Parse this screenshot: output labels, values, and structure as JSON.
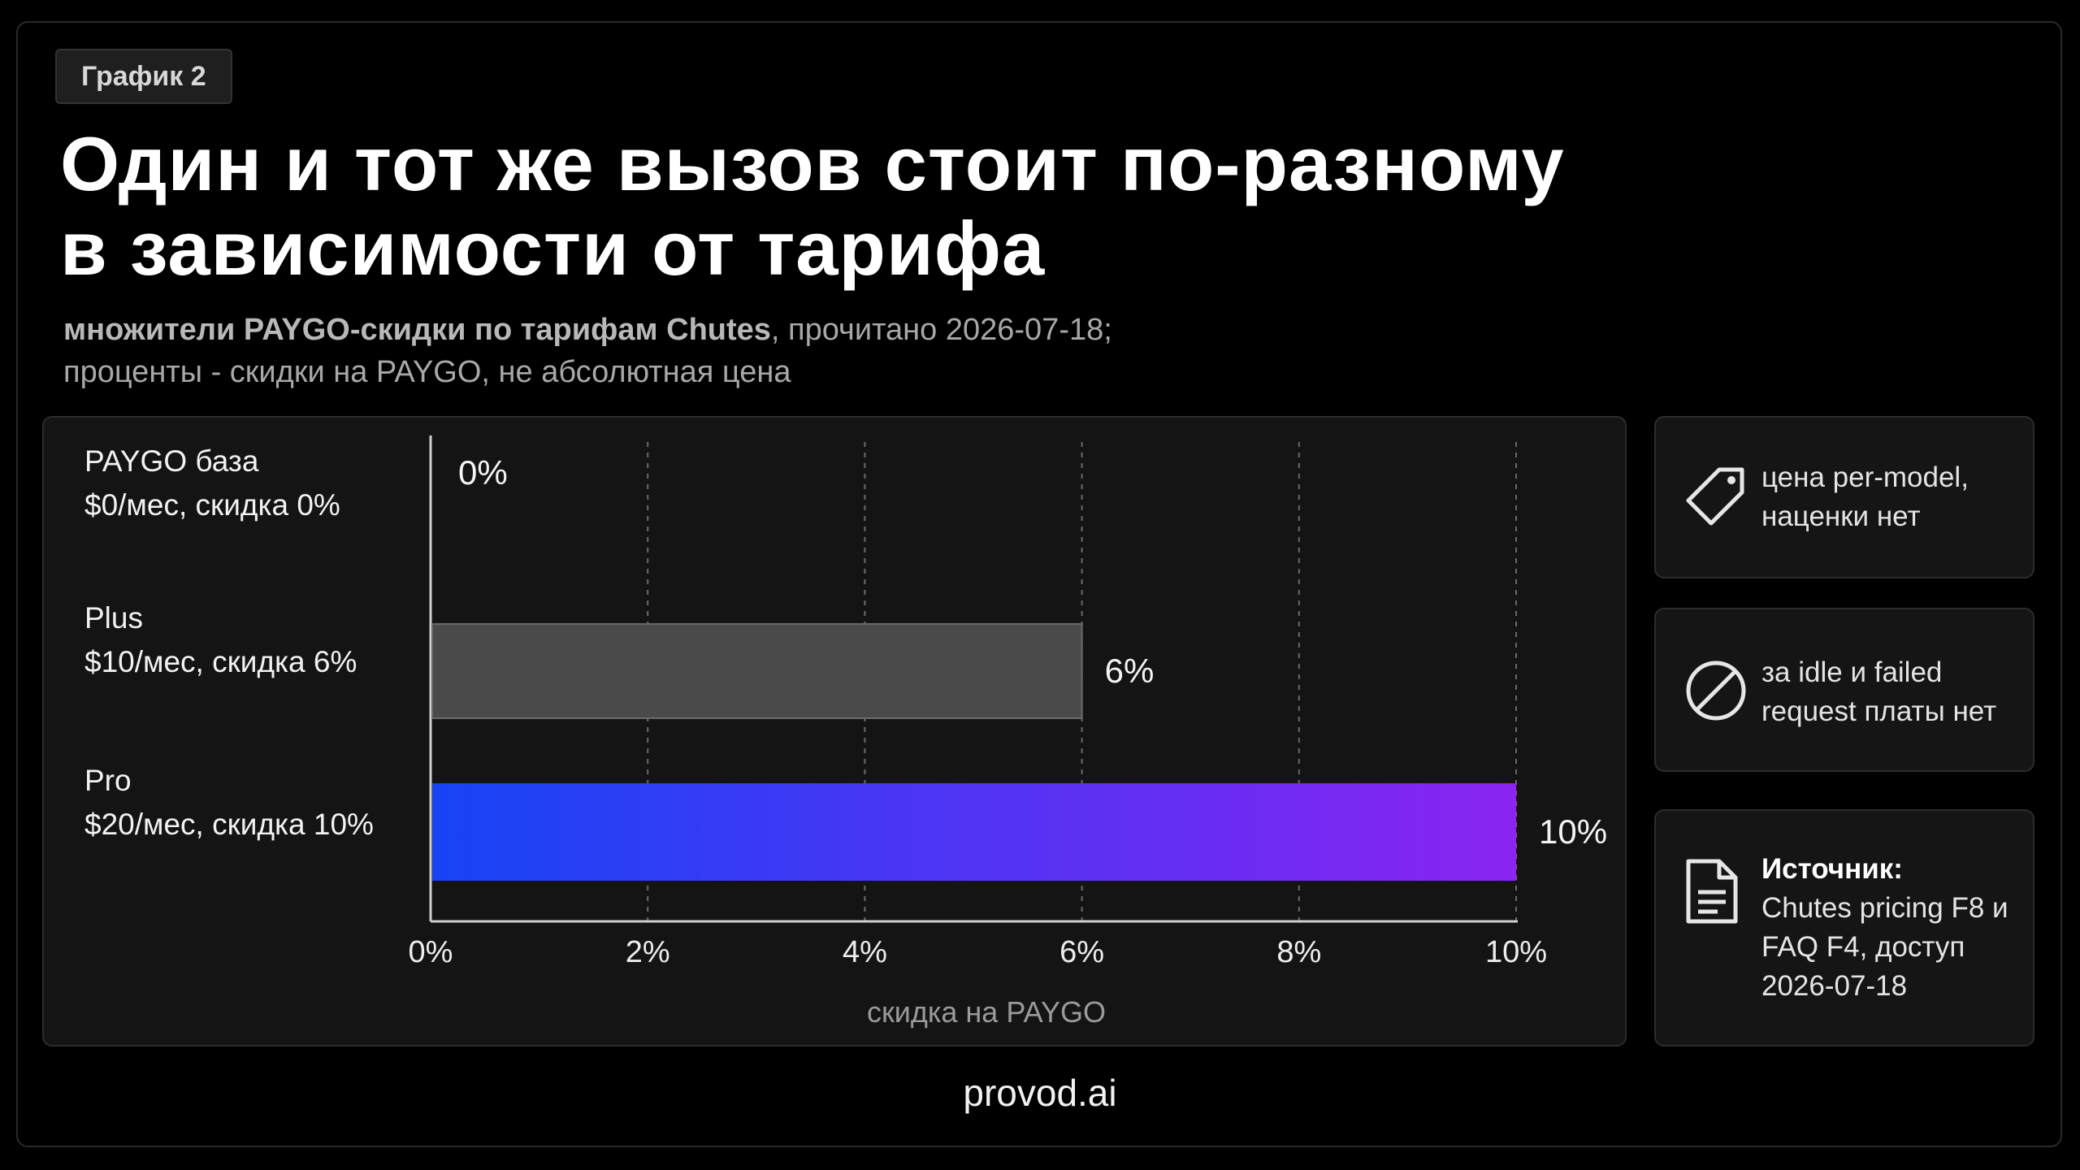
{
  "badge": "График 2",
  "title": {
    "line1": "Один и тот же вызов стоит по-разному",
    "line2": "в зависимости от тарифа"
  },
  "subtitle": {
    "bold": "множители PAYGO-скидки по тарифам Chutes",
    "rest1": ", прочитано 2026-07-18;",
    "line2": "проценты - скидки на PAYGO, не абсолютная цена"
  },
  "chart_data": {
    "type": "bar",
    "orientation": "horizontal",
    "categories": [
      {
        "name": "PAYGO база",
        "detail": "$0/мес, скидка 0%"
      },
      {
        "name": "Plus",
        "detail": "$10/мес, скидка 6%"
      },
      {
        "name": "Pro",
        "detail": "$20/мес, скидка 10%"
      }
    ],
    "values": [
      0,
      6,
      10
    ],
    "value_labels": [
      "0%",
      "6%",
      "10%"
    ],
    "xticks": [
      "0%",
      "2%",
      "4%",
      "6%",
      "8%",
      "10%"
    ],
    "xlim": [
      0,
      10
    ],
    "xlabel": "скидка на PAYGO",
    "grid": "vertical dashed",
    "colors": {
      "bar_gray": "#4a4a4a",
      "bar_gradient_start": "#1744f5",
      "bar_gradient_end": "#8a24f2"
    }
  },
  "cards": [
    {
      "icon": "price-tag-icon",
      "lines": [
        "цена per-model,",
        "наценки нет"
      ]
    },
    {
      "icon": "prohibited-icon",
      "lines": [
        "за idle и failed",
        "request платы нет"
      ]
    },
    {
      "icon": "document-icon",
      "heading": "Источник:",
      "lines": [
        "Chutes pricing F8 и",
        "FAQ F4, доступ",
        "2026-07-18"
      ]
    }
  ],
  "footer": "provod.ai"
}
